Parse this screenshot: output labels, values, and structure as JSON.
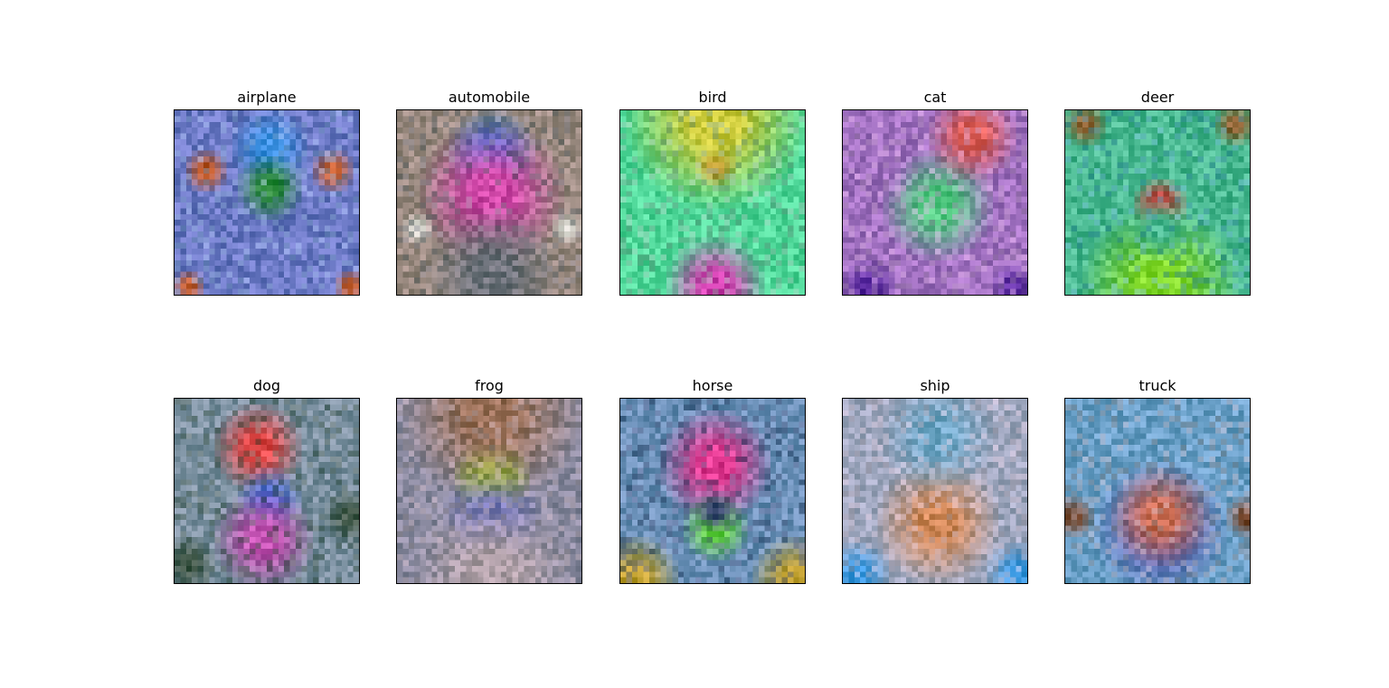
{
  "panels": [
    {
      "label": "airplane",
      "palette": [
        "#6a78c4",
        "#3a8fe0",
        "#2a8a3a",
        "#c05a2a",
        "#8fb0d8"
      ]
    },
    {
      "label": "automobile",
      "palette": [
        "#9a8a80",
        "#2a7ad8",
        "#d048a8",
        "#d8d8d0",
        "#6a7078"
      ]
    },
    {
      "label": "bird",
      "palette": [
        "#50d89a",
        "#c8c838",
        "#b04828",
        "#d040b0",
        "#8ab0a0"
      ]
    },
    {
      "label": "cat",
      "palette": [
        "#a070c0",
        "#e0605a",
        "#50c880",
        "#5a2aa0",
        "#c8a0d0"
      ]
    },
    {
      "label": "deer",
      "palette": [
        "#48b890",
        "#d83838",
        "#80d828",
        "#8a6030",
        "#4a9ab8"
      ]
    },
    {
      "label": "dog",
      "palette": [
        "#7a90a0",
        "#e04848",
        "#4a6ad0",
        "#c050b0",
        "#405848"
      ]
    },
    {
      "label": "frog",
      "palette": [
        "#8a8aa0",
        "#a0e828",
        "#6a70c0",
        "#9a7058",
        "#b0a0a8"
      ]
    },
    {
      "label": "horse",
      "palette": [
        "#6a90b8",
        "#e03890",
        "#60d040",
        "#c0a030",
        "#3a4a70"
      ]
    },
    {
      "label": "ship",
      "palette": [
        "#a0a8c0",
        "#3a98e0",
        "#d08858",
        "#70a8c8",
        "#c8b8c8"
      ]
    },
    {
      "label": "truck",
      "palette": [
        "#6aa0c8",
        "#5a5ab0",
        "#c86a50",
        "#7a4a30",
        "#a8a0a8"
      ]
    }
  ]
}
